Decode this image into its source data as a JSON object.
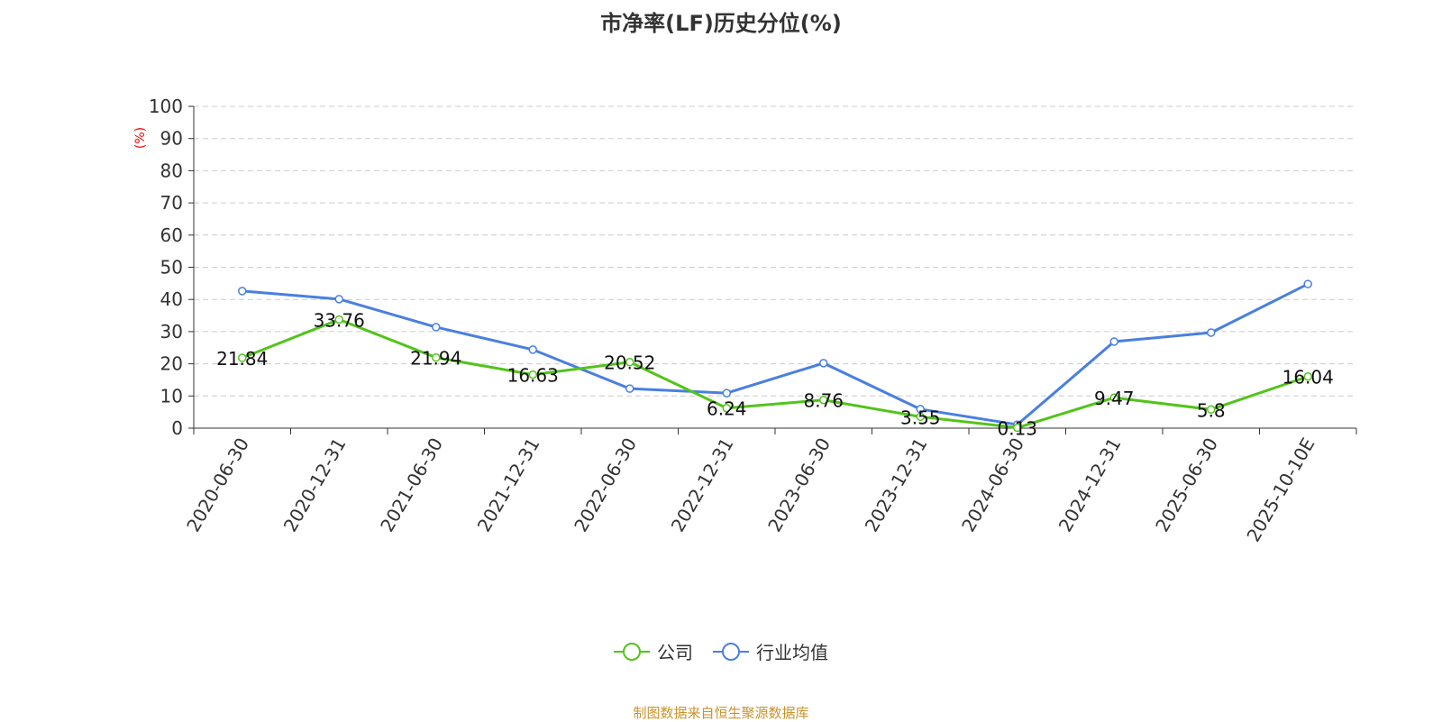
{
  "chart_data": {
    "type": "line",
    "title": "市净率(LF)历史分位(%)",
    "ylabel": "(%)",
    "ylim": [
      0,
      100
    ],
    "yticks": [
      0,
      10,
      20,
      30,
      40,
      50,
      60,
      70,
      80,
      90,
      100
    ],
    "grid": true,
    "legend_position": "bottom",
    "categories": [
      "2020-06-30",
      "2020-12-31",
      "2021-06-30",
      "2021-12-31",
      "2022-06-30",
      "2022-12-31",
      "2023-06-30",
      "2023-12-31",
      "2024-06-30",
      "2024-12-31",
      "2025-06-30",
      "2025-10-10E"
    ],
    "series": [
      {
        "name": "公司",
        "color": "#52c41a",
        "labels": true,
        "values": [
          21.84,
          33.76,
          21.94,
          16.63,
          20.52,
          6.24,
          8.76,
          3.55,
          0.13,
          9.47,
          5.8,
          16.04
        ]
      },
      {
        "name": "行业均值",
        "color": "#4a7fe0",
        "labels": false,
        "values": [
          42.6,
          40.1,
          31.4,
          24.4,
          12.3,
          10.9,
          20.2,
          5.9,
          1.1,
          26.9,
          29.7,
          44.8
        ]
      }
    ]
  },
  "source": "制图数据来自恒生聚源数据库"
}
